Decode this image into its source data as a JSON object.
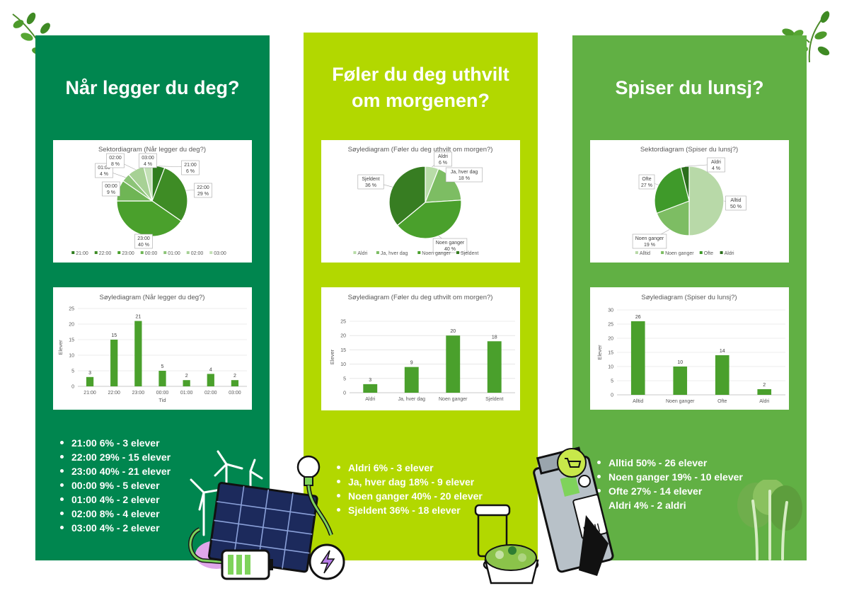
{
  "colors": {
    "column_1_bg": "#00864f",
    "column_2_bg": "#b2d800",
    "column_3_bg": "#61b044",
    "text": "#ffffff"
  },
  "columns": [
    {
      "title_lines": [
        "Når legger du deg?"
      ],
      "bullets": [
        "21:00 6% - 3 elever",
        "22:00 29% - 15 elever",
        "23:00 40% - 21 elever",
        "00:00 9% - 5 elever",
        "01:00 4% - 2 elever",
        "02:00 8% - 4 elever",
        "03:00 4% - 2 elever"
      ]
    },
    {
      "title_lines": [
        "Føler du deg uthvilt",
        "om morgenen?"
      ],
      "bullets": [
        "Aldri 6% - 3 elever",
        "Ja, hver dag 18% - 9 elever",
        "Noen ganger 40% - 20 elever",
        "Sjeldent 36% - 18 elever"
      ]
    },
    {
      "title_lines": [
        "Spiser du lunsj?"
      ],
      "bullets": [
        "Alltid 50% - 26 elever",
        "Noen ganger 19% - 10 elever",
        "Ofte 27% - 14 elever",
        "Aldri 4% - 2 aldri"
      ]
    }
  ],
  "chart_data": [
    {
      "type": "pie",
      "title": "Sektordiagram (Når legger du deg?)",
      "categories": [
        "21:00",
        "22:00",
        "23:00",
        "00:00",
        "01:00",
        "02:00",
        "03:00"
      ],
      "values": [
        3,
        15,
        21,
        5,
        2,
        4,
        2
      ],
      "percent_labels": [
        "6 %",
        "29 %",
        "40 %",
        "9 %",
        "4 %",
        "8 %",
        "4 %"
      ],
      "colors": [
        "#2f7d1e",
        "#3e8c25",
        "#4aa02c",
        "#6fb555",
        "#8cc477",
        "#a7d195",
        "#c3e0b6"
      ],
      "legend": "bottom"
    },
    {
      "type": "bar",
      "title": "Søylediagram (Når legger du deg?)",
      "categories": [
        "21:00",
        "22:00",
        "23:00",
        "00:00",
        "01:00",
        "02:00",
        "03:00"
      ],
      "values": [
        3,
        15,
        21,
        5,
        2,
        4,
        2
      ],
      "xlabel": "Tid",
      "ylabel": "Elever",
      "ylim": [
        0,
        25
      ],
      "yticks": [
        0,
        5,
        10,
        15,
        20,
        25
      ],
      "color": "#4aa02c",
      "grid": true
    },
    {
      "type": "pie",
      "title": "Søylediagram (Føler du deg uthvilt om morgen?)",
      "categories": [
        "Aldri",
        "Ja, hver dag",
        "Noen ganger",
        "Sjeldent"
      ],
      "values": [
        3,
        9,
        20,
        18
      ],
      "percent_labels": [
        "6 %",
        "18 %",
        "40 %",
        "36 %"
      ],
      "colors": [
        "#b8dca8",
        "#7dbd63",
        "#4aa02c",
        "#377d22"
      ],
      "legend": "bottom"
    },
    {
      "type": "bar",
      "title": "Søylediagram (Føler du deg uthvilt om morgen?)",
      "categories": [
        "Aldri",
        "Ja, hver dag",
        "Noen ganger",
        "Sjeldent"
      ],
      "values": [
        3,
        9,
        20,
        18
      ],
      "xlabel": "",
      "ylabel": "Elever",
      "ylim": [
        0,
        25
      ],
      "yticks": [
        0,
        5,
        10,
        15,
        20,
        25
      ],
      "color": "#4aa02c",
      "grid": true
    },
    {
      "type": "pie",
      "title": "Sektordiagram (Spiser du lunsj?)",
      "categories": [
        "Alltid",
        "Noen ganger",
        "Ofte",
        "Aldri"
      ],
      "values": [
        26,
        10,
        14,
        2
      ],
      "percent_labels": [
        "50 %",
        "19 %",
        "27 %",
        "4 %"
      ],
      "colors": [
        "#b8d9a8",
        "#7dbd63",
        "#3f9a2a",
        "#2b6e1c"
      ],
      "legend": "bottom"
    },
    {
      "type": "bar",
      "title": "Søylediagram (Spiser du lunsj?)",
      "categories": [
        "Alltid",
        "Noen ganger",
        "Ofte",
        "Aldri"
      ],
      "values": [
        26,
        10,
        14,
        2
      ],
      "xlabel": "",
      "ylabel": "Elever",
      "ylim": [
        0,
        30
      ],
      "yticks": [
        0,
        5,
        10,
        15,
        20,
        25,
        30
      ],
      "color": "#4aa02c",
      "grid": true
    }
  ]
}
